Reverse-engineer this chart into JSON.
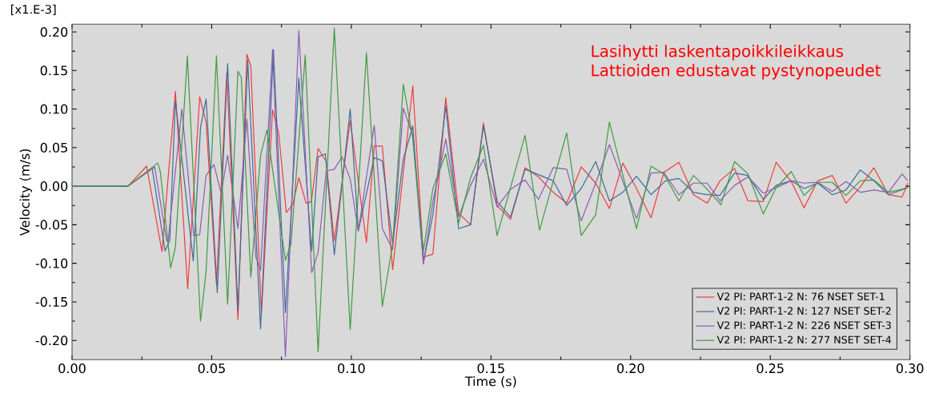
{
  "chart_data": {
    "type": "line",
    "title": "Lasihytti laskentapoikkileikkaus",
    "subtitle": "Lattioiden edustavat pystynopeudet",
    "xlabel": "Time  (s)",
    "ylabel": "Velocity  (m/s)",
    "annotations": [
      "[x1.E-3]"
    ],
    "xlim": [
      0,
      0.3
    ],
    "ylim": [
      -0.225,
      0.21
    ],
    "xticks": [
      {
        "value": 0,
        "label": "0.00"
      },
      {
        "value": 0.05,
        "label": "0.05"
      },
      {
        "value": 0.1,
        "label": "0.10"
      },
      {
        "value": 0.15,
        "label": "0.15"
      },
      {
        "value": 0.2,
        "label": "0.20"
      },
      {
        "value": 0.25,
        "label": "0.25"
      },
      {
        "value": 0.3,
        "label": "0.30"
      }
    ],
    "yticks": [
      {
        "value": -0.2,
        "label": "-0.20"
      },
      {
        "value": -0.15,
        "label": "-0.15"
      },
      {
        "value": -0.1,
        "label": "-0.10"
      },
      {
        "value": -0.05,
        "label": "-0.05"
      },
      {
        "value": 0,
        "label": "0.00"
      },
      {
        "value": 0.05,
        "label": "0.05"
      },
      {
        "value": 0.1,
        "label": "0.10"
      },
      {
        "value": 0.15,
        "label": "0.15"
      },
      {
        "value": 0.2,
        "label": "0.20"
      }
    ],
    "legend": "bottom right",
    "marker": "none",
    "line_style": "solid",
    "grid": false,
    "series": [
      {
        "name": "V2 PI: PART-1-2 N: 76 NSET SET-1",
        "color": "#f03c3c",
        "x": [
          0,
          0.02,
          0.0267,
          0.0322,
          0.037,
          0.0414,
          0.0457,
          0.048,
          0.0517,
          0.0554,
          0.0594,
          0.0626,
          0.064,
          0.0678,
          0.0718,
          0.074,
          0.0767,
          0.079,
          0.0812,
          0.0838,
          0.0857,
          0.0881,
          0.091,
          0.0939,
          0.0996,
          0.1054,
          0.1082,
          0.1111,
          0.1148,
          0.122,
          0.1258,
          0.1292,
          0.1338,
          0.1384,
          0.1427,
          0.1473,
          0.1522,
          0.157,
          0.1622,
          0.167,
          0.1723,
          0.1771,
          0.1823,
          0.1875,
          0.1924,
          0.1972,
          0.2018,
          0.2073,
          0.2119,
          0.2173,
          0.2225,
          0.2274,
          0.232,
          0.2372,
          0.242,
          0.2475,
          0.2521,
          0.2575,
          0.2621,
          0.267,
          0.2722,
          0.2771,
          0.2822,
          0.2871,
          0.2923,
          0.2972,
          0.2992
        ],
        "values": [
          0,
          0,
          0.026,
          -0.085,
          0.123,
          -0.133,
          0.116,
          0.083,
          -0.127,
          0.147,
          -0.173,
          0.171,
          0.156,
          -0.165,
          0.099,
          0.069,
          -0.034,
          -0.024,
          0.011,
          -0.022,
          -0.02,
          0.049,
          0.032,
          -0.071,
          0.085,
          -0.073,
          0.052,
          0.052,
          -0.108,
          0.13,
          -0.092,
          -0.088,
          0.115,
          -0.035,
          -0.05,
          0.082,
          -0.025,
          -0.043,
          0.024,
          0.012,
          -0.008,
          -0.022,
          0.025,
          0.004,
          -0.029,
          0.03,
          -0.001,
          -0.041,
          0.018,
          0.031,
          -0.011,
          -0.022,
          0.007,
          0.023,
          -0.019,
          -0.02,
          0.031,
          0.006,
          -0.028,
          0.007,
          0.014,
          -0.022,
          -0.001,
          0.024,
          -0.011,
          -0.014,
          0.004
        ]
      },
      {
        "name": "V2 PI: PART-1-2 N: 127 NSET SET-2",
        "color": "#3d6b99",
        "x": [
          0,
          0.02,
          0.0287,
          0.0333,
          0.035,
          0.037,
          0.0434,
          0.046,
          0.048,
          0.052,
          0.0557,
          0.0594,
          0.0629,
          0.0675,
          0.0721,
          0.0764,
          0.0812,
          0.0858,
          0.0881,
          0.0907,
          0.0939,
          0.0996,
          0.1025,
          0.1082,
          0.1111,
          0.1148,
          0.1186,
          0.122,
          0.1258,
          0.1292,
          0.1338,
          0.1384,
          0.1427,
          0.1473,
          0.1522,
          0.157,
          0.1622,
          0.167,
          0.1723,
          0.1771,
          0.1823,
          0.1875,
          0.1924,
          0.1972,
          0.2021,
          0.2073,
          0.2125,
          0.2173,
          0.2225,
          0.2274,
          0.232,
          0.2372,
          0.242,
          0.2475,
          0.2521,
          0.2575,
          0.2621,
          0.267,
          0.2722,
          0.2771,
          0.2822,
          0.2871,
          0.2923,
          0.2992
        ],
        "values": [
          0,
          0,
          0.023,
          -0.084,
          -0.07,
          0.111,
          -0.097,
          0.076,
          0.113,
          -0.138,
          0.159,
          -0.161,
          0.164,
          -0.185,
          0.177,
          -0.164,
          0.14,
          -0.084,
          0.038,
          0.042,
          -0.089,
          0.1,
          -0.058,
          0.037,
          0.033,
          -0.075,
          0.035,
          0.078,
          -0.099,
          -0.037,
          0.104,
          -0.055,
          -0.05,
          0.079,
          -0.02,
          -0.04,
          0.022,
          0.015,
          0.007,
          -0.025,
          -0.003,
          0.032,
          -0.019,
          -0.008,
          0.013,
          -0.011,
          0.007,
          0.01,
          -0.008,
          -0.011,
          -0.012,
          0.017,
          0.014,
          -0.017,
          0.001,
          0.007,
          -0.003,
          0.004,
          -0.011,
          -0.005,
          0.021,
          0.007,
          -0.011,
          -0.002
        ]
      },
      {
        "name": "V2 PI: PART-1-2 N: 226 NSET SET-3",
        "color": "#8a5cb5",
        "x": [
          0,
          0.02,
          0.0296,
          0.0339,
          0.0344,
          0.0393,
          0.0436,
          0.0457,
          0.048,
          0.0508,
          0.0534,
          0.0557,
          0.0594,
          0.0626,
          0.0658,
          0.0675,
          0.0718,
          0.0764,
          0.0812,
          0.0858,
          0.0881,
          0.091,
          0.0939,
          0.0967,
          0.0996,
          0.1025,
          0.1082,
          0.1111,
          0.1148,
          0.1186,
          0.122,
          0.1258,
          0.1292,
          0.1338,
          0.1384,
          0.1427,
          0.1473,
          0.1522,
          0.157,
          0.1622,
          0.167,
          0.1723,
          0.1771,
          0.1823,
          0.1875,
          0.1924,
          0.2021,
          0.2073,
          0.2119,
          0.2173,
          0.2225,
          0.2274,
          0.232,
          0.2372,
          0.242,
          0.2475,
          0.2521,
          0.2575,
          0.2621,
          0.267,
          0.2722,
          0.2771,
          0.2822,
          0.2871,
          0.2923,
          0.2972,
          0.2992
        ],
        "values": [
          0,
          0,
          0.025,
          -0.071,
          -0.071,
          0.1,
          -0.064,
          -0.063,
          0.014,
          0.028,
          -0.009,
          0.04,
          -0.055,
          0.087,
          -0.092,
          -0.109,
          0.177,
          -0.221,
          0.202,
          -0.112,
          -0.086,
          0.02,
          0.022,
          0.038,
          0.009,
          -0.058,
          0.079,
          -0.055,
          -0.082,
          0.101,
          0.066,
          -0.101,
          -0.02,
          0.061,
          -0.04,
          0.001,
          0.035,
          -0.027,
          -0.004,
          0.008,
          -0.017,
          0.024,
          0.022,
          -0.045,
          0.004,
          0.054,
          -0.042,
          0.017,
          0.018,
          -0.011,
          0.004,
          0.004,
          -0.019,
          0.001,
          0.012,
          -0.009,
          -0.002,
          0.007,
          0.004,
          0.005,
          -0.007,
          0.006,
          -0.008,
          -0.005,
          -0.008,
          0.016,
          0.007
        ]
      },
      {
        "name": "V2 PI: PART-1-2 N: 277 NSET SET-4",
        "color": "#3f9a3f",
        "x": [
          0,
          0.02,
          0.0307,
          0.0316,
          0.0353,
          0.037,
          0.0413,
          0.046,
          0.048,
          0.0517,
          0.0557,
          0.0594,
          0.0606,
          0.064,
          0.0675,
          0.0698,
          0.0764,
          0.0784,
          0.0835,
          0.0881,
          0.0939,
          0.0996,
          0.1054,
          0.1111,
          0.1148,
          0.1186,
          0.122,
          0.1258,
          0.1292,
          0.1338,
          0.1384,
          0.1427,
          0.1473,
          0.1522,
          0.1622,
          0.1674,
          0.1771,
          0.1823,
          0.1875,
          0.1924,
          0.2021,
          0.2073,
          0.2119,
          0.2173,
          0.2225,
          0.2274,
          0.2323,
          0.2372,
          0.242,
          0.2475,
          0.2521,
          0.2575,
          0.2621,
          0.267,
          0.2722,
          0.2771,
          0.2822,
          0.2871,
          0.2923,
          0.2992
        ],
        "values": [
          0,
          0,
          0.03,
          0.019,
          -0.106,
          -0.079,
          0.169,
          -0.175,
          -0.11,
          0.169,
          -0.153,
          0.149,
          0.141,
          -0.118,
          0.04,
          0.073,
          -0.096,
          -0.075,
          0.17,
          -0.215,
          0.205,
          -0.186,
          0.173,
          -0.156,
          -0.075,
          0.132,
          0.062,
          -0.084,
          -0.003,
          0.042,
          -0.048,
          0.011,
          0.053,
          -0.064,
          0.066,
          -0.057,
          0.069,
          -0.064,
          -0.037,
          0.083,
          -0.055,
          0.026,
          0.016,
          -0.019,
          0.014,
          -0.004,
          -0.024,
          0.032,
          0.016,
          -0.036,
          -0.002,
          0.019,
          -0.012,
          0.005,
          0.005,
          -0.012,
          0.007,
          0.008,
          -0.008,
          -0.002
        ]
      }
    ]
  }
}
